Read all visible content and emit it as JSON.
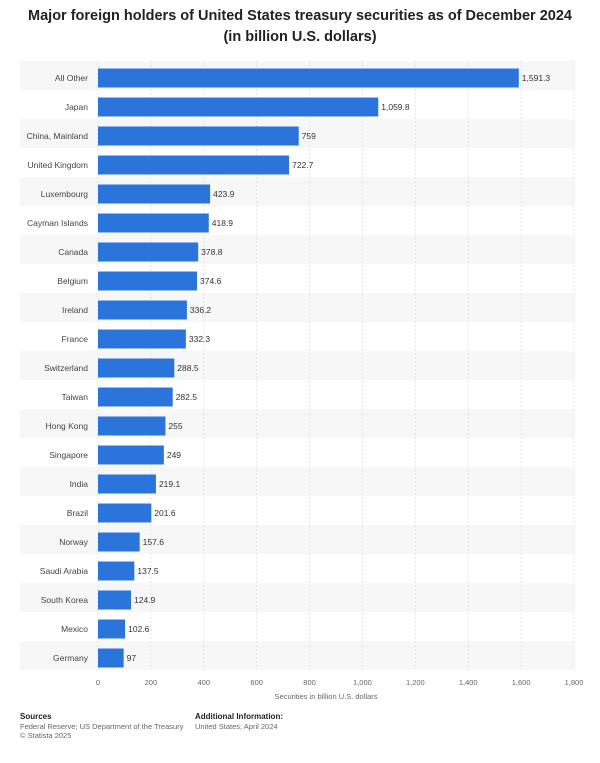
{
  "chart_data": {
    "type": "bar",
    "orientation": "horizontal",
    "title": "Major foreign holders of United States treasury securities as of December 2024 (in billion U.S. dollars)",
    "xlabel": "Securities in billion U.S. dollars",
    "ylabel": "",
    "xlim": [
      0,
      1800
    ],
    "ticks": [
      0,
      200,
      400,
      600,
      800,
      1000,
      1200,
      1400,
      1600,
      1800
    ],
    "tick_labels": [
      "0",
      "200",
      "400",
      "600",
      "800",
      "1,000",
      "1,200",
      "1,400",
      "1,600",
      "1,800"
    ],
    "categories": [
      "All Other",
      "Japan",
      "China, Mainland",
      "United Kingdom",
      "Luxembourg",
      "Cayman Islands",
      "Canada",
      "Belgium",
      "Ireland",
      "France",
      "Switzerland",
      "Taiwan",
      "Hong Kong",
      "Singapore",
      "India",
      "Brazil",
      "Norway",
      "Saudi Arabia",
      "South Korea",
      "Mexico",
      "Germany"
    ],
    "values": [
      1591.3,
      1059.8,
      759,
      722.7,
      423.9,
      418.9,
      378.8,
      374.6,
      336.2,
      332.3,
      288.5,
      282.5,
      255,
      249,
      219.1,
      201.6,
      157.6,
      137.5,
      124.9,
      102.6,
      97
    ],
    "value_labels": [
      "1,591.3",
      "1,059.8",
      "759",
      "722.7",
      "423.9",
      "418.9",
      "378.8",
      "374.6",
      "336.2",
      "332.3",
      "288.5",
      "282.5",
      "255",
      "249",
      "219.1",
      "201.6",
      "157.6",
      "137.5",
      "124.9",
      "102.6",
      "97"
    ],
    "grid": true,
    "bar_color": "#2a74dc"
  },
  "footer": {
    "sources_head": "Sources",
    "sources_line1": "Federal Reserve; US Department of the Treasury",
    "sources_line2": "© Statista 2025",
    "info_head": "Additional Information:",
    "info_line1": "United States; April 2024"
  }
}
